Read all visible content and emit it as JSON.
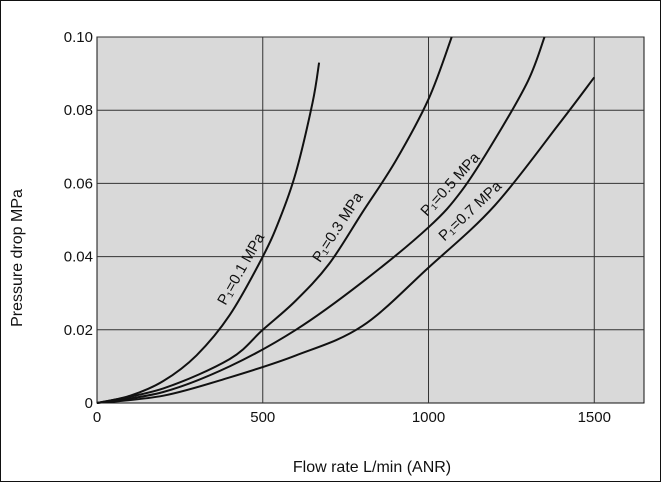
{
  "chart_data": {
    "type": "line",
    "title": "",
    "xlabel": "Flow rate L/min (ANR)",
    "ylabel": "Pressure drop MPa",
    "xlim": [
      0,
      1650
    ],
    "ylim": [
      0,
      0.1
    ],
    "x_ticks": [
      "0",
      "500",
      "1000",
      "1500"
    ],
    "y_ticks": [
      "0",
      "0.02",
      "0.04",
      "0.06",
      "0.08",
      "0.10"
    ],
    "grid": true,
    "colors": {
      "background": "#d9d9d9",
      "line": "#111111",
      "grid": "#333333"
    },
    "series": [
      {
        "name": "P₁=0.1 MPa",
        "points": [
          [
            0,
            0
          ],
          [
            100,
            0.002
          ],
          [
            200,
            0.006
          ],
          [
            300,
            0.013
          ],
          [
            400,
            0.024
          ],
          [
            500,
            0.04
          ],
          [
            550,
            0.05
          ],
          [
            600,
            0.063
          ],
          [
            650,
            0.082
          ],
          [
            670,
            0.093
          ]
        ]
      },
      {
        "name": "P₁=0.3 MPa",
        "points": [
          [
            0,
            0
          ],
          [
            200,
            0.004
          ],
          [
            400,
            0.012
          ],
          [
            500,
            0.02
          ],
          [
            600,
            0.028
          ],
          [
            700,
            0.038
          ],
          [
            800,
            0.052
          ],
          [
            900,
            0.066
          ],
          [
            1000,
            0.083
          ],
          [
            1070,
            0.1
          ]
        ]
      },
      {
        "name": "P₁=0.5 MPa",
        "points": [
          [
            0,
            0
          ],
          [
            200,
            0.003
          ],
          [
            400,
            0.01
          ],
          [
            600,
            0.02
          ],
          [
            800,
            0.033
          ],
          [
            1000,
            0.048
          ],
          [
            1100,
            0.058
          ],
          [
            1200,
            0.072
          ],
          [
            1300,
            0.088
          ],
          [
            1350,
            0.1
          ]
        ]
      },
      {
        "name": "P₁=0.7 MPa",
        "points": [
          [
            0,
            0
          ],
          [
            200,
            0.002
          ],
          [
            400,
            0.007
          ],
          [
            600,
            0.013
          ],
          [
            800,
            0.021
          ],
          [
            1000,
            0.037
          ],
          [
            1200,
            0.054
          ],
          [
            1400,
            0.077
          ],
          [
            1500,
            0.089
          ]
        ]
      }
    ]
  }
}
